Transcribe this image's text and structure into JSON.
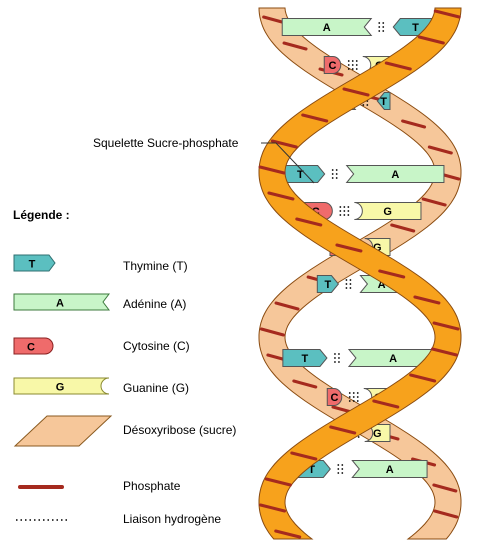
{
  "backbone_label": "Squelette Sucre-phosphate",
  "legend": {
    "title": "Légende :",
    "items": [
      {
        "key": "T",
        "label": "Thymine (T)",
        "color": "#5bbfc0"
      },
      {
        "key": "A",
        "label": "Adénine (A)",
        "color": "#c8f5c8"
      },
      {
        "key": "C",
        "label": "Cytosine (C)",
        "color": "#ef6b6b"
      },
      {
        "key": "G",
        "label": "Guanine (G)",
        "color": "#f8f8a8"
      },
      {
        "key": "",
        "label": "Désoxyribose (sucre)",
        "color": "#f6c79a"
      },
      {
        "key": "",
        "label": "Phosphate",
        "color": "#a52a1e"
      },
      {
        "key": "",
        "label": "Liaison hydrogène",
        "color": "#000000"
      }
    ]
  },
  "pairs": [
    {
      "left": "A",
      "right": "T"
    },
    {
      "left": "C",
      "right": "G"
    },
    {
      "left": "A",
      "right": "T"
    },
    {
      "left": "T",
      "right": "A"
    },
    {
      "left": "C",
      "right": "G"
    },
    {
      "left": "C",
      "right": "G"
    },
    {
      "left": "T",
      "right": "A"
    },
    {
      "left": "T",
      "right": "A"
    },
    {
      "left": "C",
      "right": "G"
    },
    {
      "left": "C",
      "right": "G"
    },
    {
      "left": "T",
      "right": "A"
    }
  ],
  "colors": {
    "strand_front": "#f7a21c",
    "strand_back": "#f6c79a",
    "strand_outline": "#8a4b10",
    "phosphate": "#a52a1e"
  }
}
